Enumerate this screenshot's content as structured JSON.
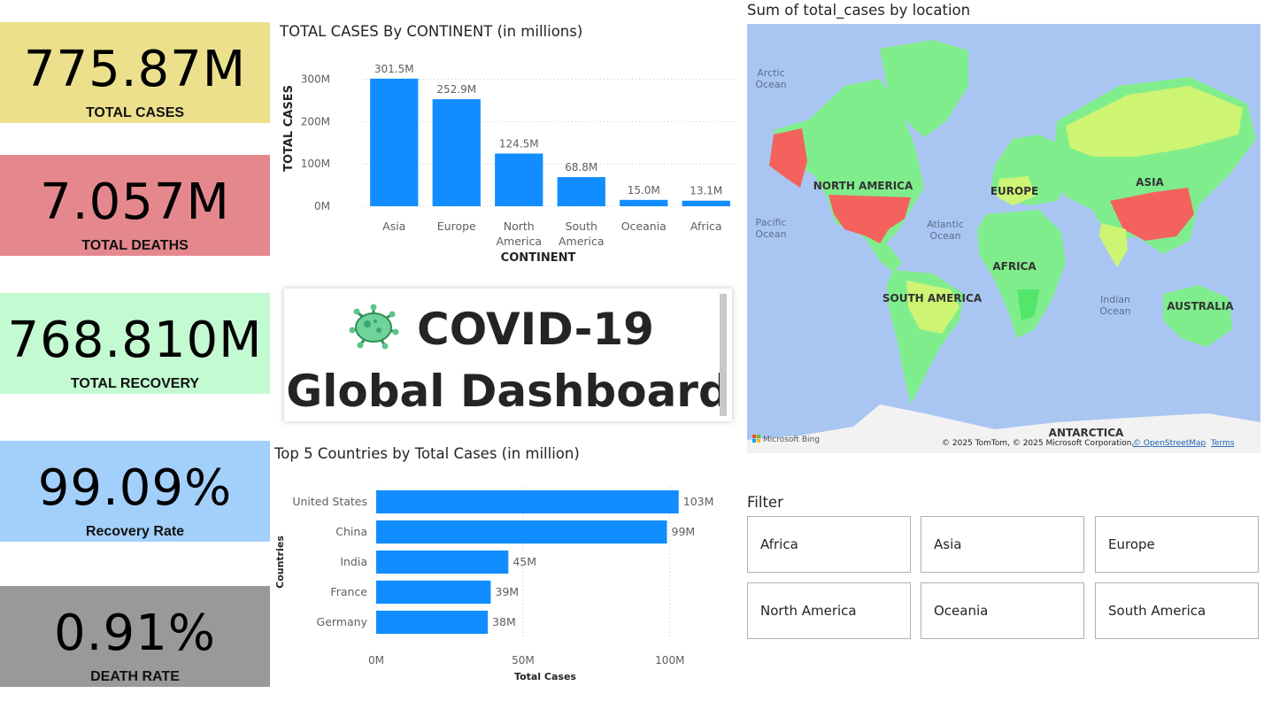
{
  "kpis": [
    {
      "value": "775.87M",
      "label": "TOTAL CASES",
      "color": "#ede08d"
    },
    {
      "value": "7.057M",
      "label": "TOTAL DEATHS",
      "color": "#e5888e"
    },
    {
      "value": "768.810M",
      "label": "TOTAL RECOVERY",
      "color": "#c3fad1"
    },
    {
      "value": "99.09%",
      "label": "Recovery Rate",
      "color": "#a3cffb"
    },
    {
      "value": "0.91%",
      "label": "DEATH RATE",
      "color": "#999999"
    }
  ],
  "dashboard": {
    "line1": "COVID-19",
    "line2": "Global Dashboard",
    "icon": "virus-icon"
  },
  "filter": {
    "title": "Filter",
    "options": [
      "Africa",
      "Asia",
      "Europe",
      "North America",
      "Oceania",
      "South America"
    ]
  },
  "map": {
    "title": "Sum of total_cases by location",
    "labels": {
      "arctic": [
        "Arctic",
        "Ocean"
      ],
      "pacific": [
        "Pacific",
        "Ocean"
      ],
      "atlantic": [
        "Atlantic",
        "Ocean"
      ],
      "indian": [
        "Indian",
        "Ocean"
      ],
      "north_america": "NORTH AMERICA",
      "south_america": "SOUTH AMERICA",
      "europe": "EUROPE",
      "asia": "ASIA",
      "africa": "AFRICA",
      "australia": "AUSTRALIA",
      "antarctica": "ANTARCTICA"
    },
    "brand": "Microsoft Bing",
    "attribution": "© 2025 TomTom, © 2025 Microsoft Corporation,",
    "osm_link": "© OpenStreetMap",
    "terms_link": "Terms",
    "colors": {
      "water": "#a9c6f2",
      "high": "#f4625e",
      "medium": "#cef474",
      "low": "#80ed8c",
      "ice": "#f2f2f2"
    }
  },
  "chart_data": [
    {
      "type": "bar",
      "title": "TOTAL CASES By CONTINENT (in millions)",
      "xlabel": "CONTINENT",
      "ylabel": "TOTAL CASES",
      "categories": [
        [
          "Asia"
        ],
        [
          "Europe"
        ],
        [
          "North",
          "America"
        ],
        [
          "South",
          "America"
        ],
        [
          "Oceania"
        ],
        [
          "Africa"
        ]
      ],
      "values": [
        301.5,
        252.9,
        124.5,
        68.8,
        15.0,
        13.1
      ],
      "data_labels": [
        "301.5M",
        "252.9M",
        "124.5M",
        "68.8M",
        "15.0M",
        "13.1M"
      ],
      "yticks": [
        0,
        100,
        200,
        300
      ],
      "ytick_labels": [
        "0M",
        "100M",
        "200M",
        "300M"
      ],
      "ylim": [
        0,
        320
      ],
      "grid": true,
      "color": "#118dff"
    },
    {
      "type": "bar",
      "orientation": "horizontal",
      "title": "Top 5 Countries by Total Cases (in million)",
      "xlabel": "Total Cases",
      "ylabel": "Countries",
      "categories": [
        "United States",
        "China",
        "India",
        "France",
        "Germany"
      ],
      "values": [
        103,
        99,
        45,
        39,
        38
      ],
      "data_labels": [
        "103M",
        "99M",
        "45M",
        "39M",
        "38M"
      ],
      "xticks": [
        0,
        50,
        100
      ],
      "xtick_labels": [
        "0M",
        "50M",
        "100M"
      ],
      "xlim": [
        0,
        110
      ],
      "grid": true,
      "color": "#118dff"
    }
  ]
}
